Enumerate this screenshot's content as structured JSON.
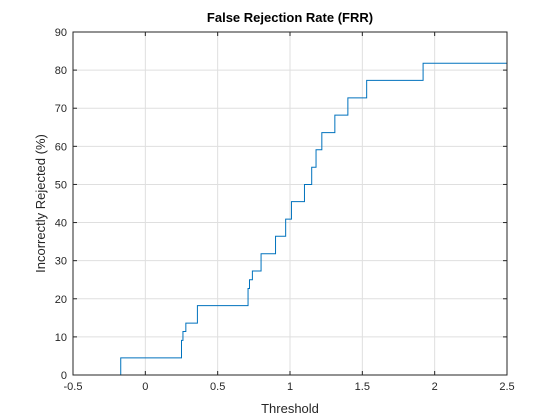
{
  "chart_data": {
    "type": "line",
    "title": "False Rejection Rate (FRR)",
    "xlabel": "Threshold",
    "ylabel": "Incorrectly Rejected (%)",
    "xlim": [
      -0.5,
      2.5
    ],
    "ylim": [
      0,
      90
    ],
    "xticks": [
      -0.5,
      0,
      0.5,
      1,
      1.5,
      2,
      2.5
    ],
    "xtick_labels": [
      "-0.5",
      "0",
      "0.5",
      "1",
      "1.5",
      "2",
      "2.5"
    ],
    "yticks": [
      0,
      10,
      20,
      30,
      40,
      50,
      60,
      70,
      80,
      90
    ],
    "ytick_labels": [
      "0",
      "10",
      "20",
      "30",
      "40",
      "50",
      "60",
      "70",
      "80",
      "90"
    ],
    "grid": true,
    "line_color": "#0072BD",
    "series": [
      {
        "step": "post",
        "x": [
          -0.5,
          -0.17,
          0.25,
          0.26,
          0.28,
          0.36,
          0.71,
          0.72,
          0.74,
          0.8,
          0.84,
          0.9,
          0.97,
          1.01,
          1.1,
          1.15,
          1.18,
          1.22,
          1.31,
          1.4,
          1.53,
          1.92,
          2.5
        ],
        "y": [
          0,
          4.5,
          9.1,
          11.4,
          13.6,
          18.2,
          22.7,
          25.0,
          27.3,
          31.8,
          31.8,
          36.4,
          40.9,
          45.5,
          50.0,
          54.5,
          59.1,
          63.6,
          68.2,
          72.7,
          77.3,
          81.8,
          81.8
        ]
      }
    ]
  }
}
